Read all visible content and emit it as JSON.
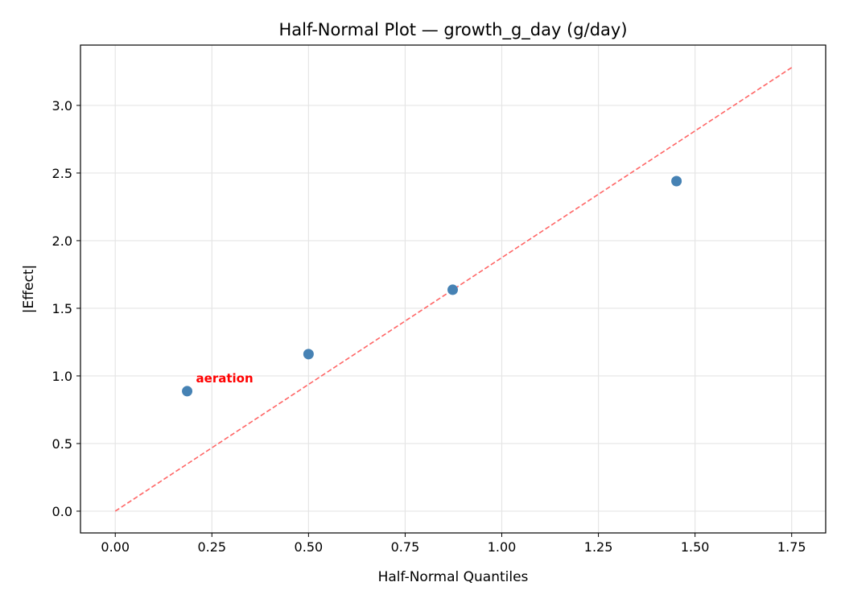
{
  "chart_data": {
    "type": "scatter",
    "title": "Half-Normal Plot — growth_g_day (g/day)",
    "xlabel": "Half-Normal Quantiles",
    "ylabel": "|Effect|",
    "xlim": [
      -0.09,
      1.838
    ],
    "ylim": [
      -0.161,
      3.446
    ],
    "xticks": [
      "0.00",
      "0.25",
      "0.50",
      "0.75",
      "1.00",
      "1.25",
      "1.50",
      "1.75"
    ],
    "yticks": [
      "0.0",
      "0.5",
      "1.0",
      "1.5",
      "2.0",
      "2.5",
      "3.0"
    ],
    "grid": true,
    "points": [
      {
        "x": 0.186,
        "y": 0.887,
        "label": "aeration"
      },
      {
        "x": 0.5,
        "y": 1.161
      },
      {
        "x": 0.873,
        "y": 1.637
      },
      {
        "x": 1.452,
        "y": 2.44
      }
    ],
    "reference_line": {
      "x": [
        0,
        1.75
      ],
      "y": [
        0,
        3.28
      ],
      "style": "dashed"
    },
    "colors": {
      "points": "#4682b4",
      "reference_line": "#ff6666",
      "annotation": "#ff0000",
      "grid": "#e5e5e5"
    }
  }
}
